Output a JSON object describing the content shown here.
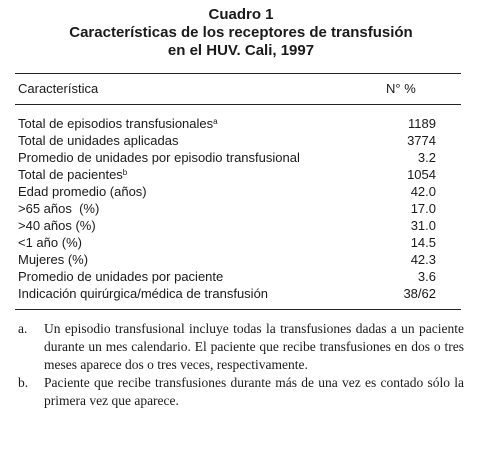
{
  "title": {
    "line1": "Cuadro 1",
    "line2": "Características de los receptores de transfusión",
    "line3": "en el HUV. Cali, 1997"
  },
  "table": {
    "headers": {
      "characteristic": "Característica",
      "value": "N° %"
    },
    "rows": [
      {
        "label": "Total de episodios transfusionales",
        "sup": "a",
        "value": "1189"
      },
      {
        "label": "Total de unidades aplicadas",
        "sup": "",
        "value": "3774"
      },
      {
        "label": "Promedio de unidades por episodio transfusional",
        "sup": "",
        "value": "3.2"
      },
      {
        "label": "Total de pacientes",
        "sup": "b",
        "value": "1054"
      },
      {
        "label": "Edad promedio (años)",
        "sup": "",
        "value": "42.0"
      },
      {
        "label": ">65 años  (%)",
        "sup": "",
        "value": "17.0"
      },
      {
        "label": ">40 años (%)",
        "sup": "",
        "value": "31.0"
      },
      {
        "label": "<1 año (%)",
        "sup": "",
        "value": "14.5"
      },
      {
        "label": "Mujeres (%)",
        "sup": "",
        "value": "42.3"
      },
      {
        "label": "Promedio de unidades por paciente",
        "sup": "",
        "value": "3.6"
      },
      {
        "label": "Indicación quirúrgica/médica de transfusión",
        "sup": "",
        "value": "38/62"
      }
    ]
  },
  "notes": [
    {
      "mark": "a.",
      "text": "Un episodio transfusional incluye todas la transfusiones dadas a un paciente durante un mes calendario. El paciente que recibe transfusiones en dos o tres meses aparece dos o tres veces, respectivamente."
    },
    {
      "mark": "b.",
      "text": "Paciente que recibe transfusiones durante más de una vez es contado sólo la primera vez que aparece."
    }
  ]
}
